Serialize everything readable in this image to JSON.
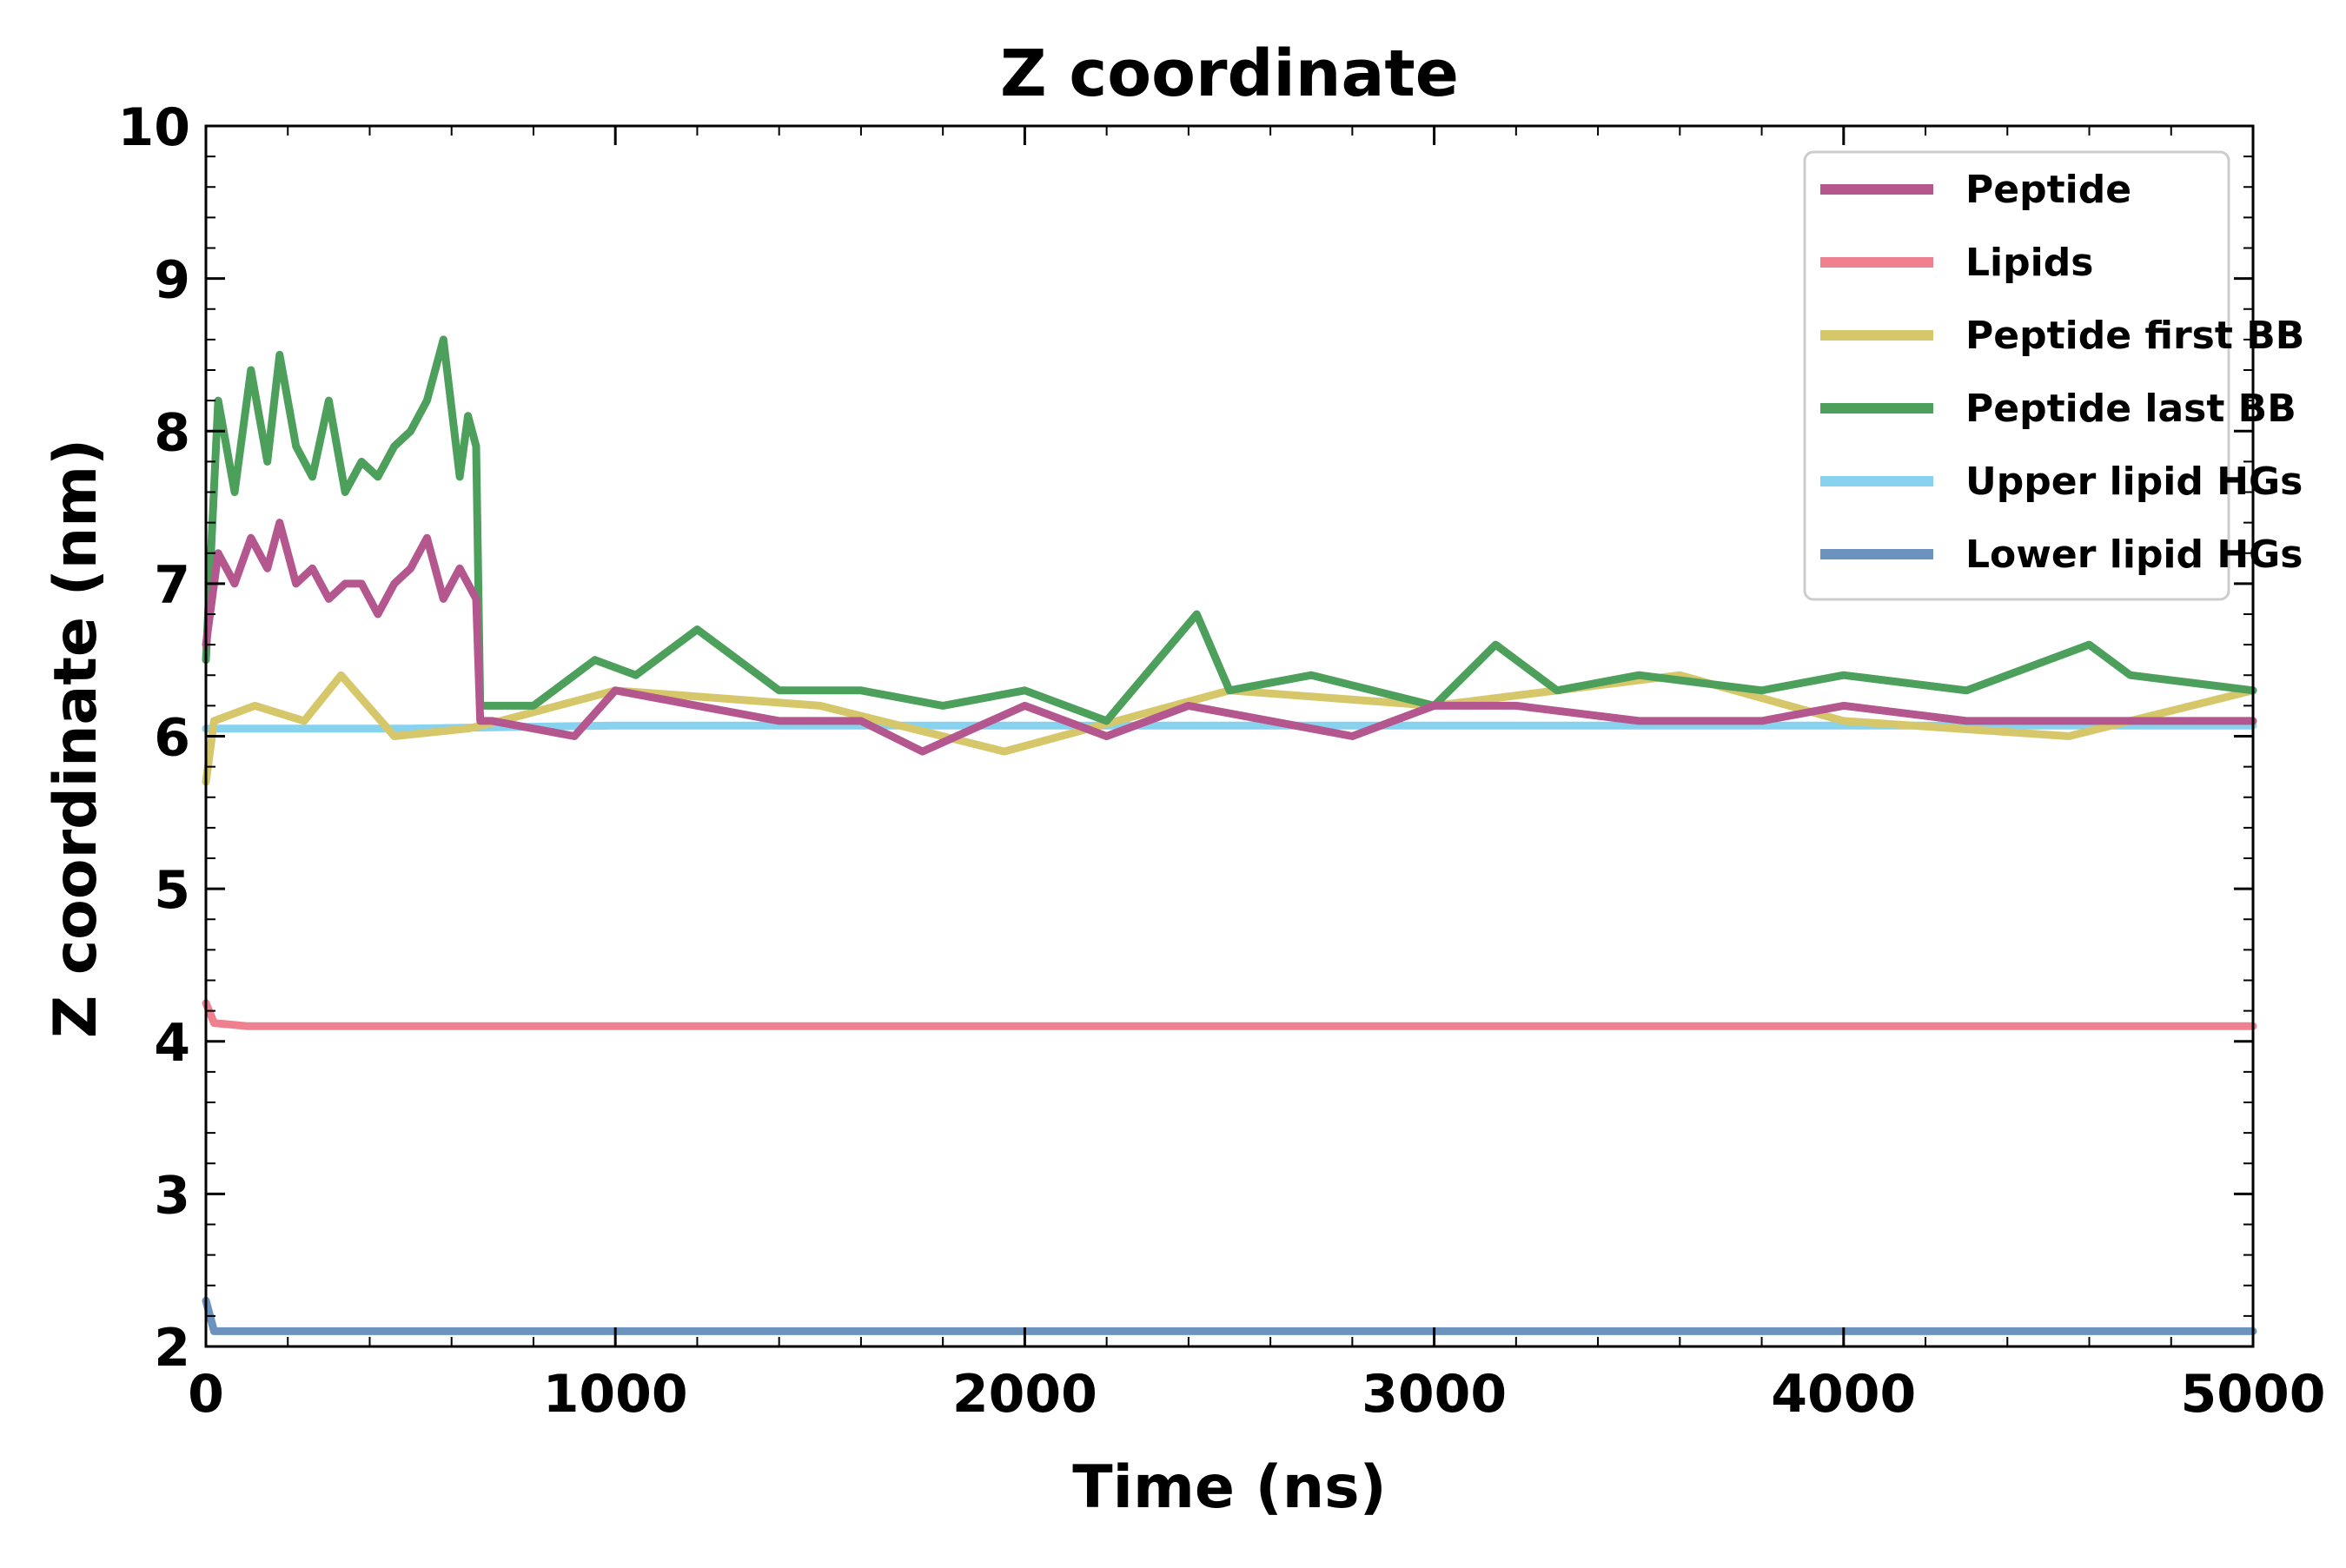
{
  "chart_data": {
    "type": "line",
    "title": "Z coordinate",
    "xlabel": "Time (ns)",
    "ylabel": "Z coordinate (nm)",
    "xlim": [
      0,
      5000
    ],
    "ylim": [
      2,
      10
    ],
    "xticks": [
      "0",
      "1000",
      "2000",
      "3000",
      "4000",
      "5000"
    ],
    "yticks": [
      "2",
      "3",
      "4",
      "5",
      "6",
      "7",
      "8",
      "9",
      "10"
    ],
    "grid": false,
    "legend_position": "top-right",
    "series": [
      {
        "name": "Lower lipid HGs",
        "color": "#6b93be",
        "x": [
          0,
          20,
          100,
          500,
          1000,
          1500,
          2000,
          2500,
          3000,
          3500,
          4000,
          4500,
          5000
        ],
        "values": [
          2.3,
          2.1,
          2.1,
          2.1,
          2.1,
          2.1,
          2.1,
          2.1,
          2.1,
          2.1,
          2.1,
          2.1,
          2.1
        ]
      },
      {
        "name": "Lipids",
        "color": "#ee8090",
        "x": [
          0,
          20,
          100,
          500,
          1000,
          1500,
          2000,
          2500,
          3000,
          3500,
          4000,
          4500,
          5000
        ],
        "values": [
          4.25,
          4.12,
          4.1,
          4.1,
          4.1,
          4.1,
          4.1,
          4.1,
          4.1,
          4.1,
          4.1,
          4.1,
          4.1
        ]
      },
      {
        "name": "Upper lipid HGs",
        "color": "#86d2ef",
        "x": [
          0,
          500,
          1000,
          1500,
          2000,
          2500,
          3000,
          3500,
          4000,
          4500,
          5000
        ],
        "values": [
          6.05,
          6.05,
          6.07,
          6.07,
          6.07,
          6.07,
          6.07,
          6.07,
          6.07,
          6.07,
          6.07
        ]
      },
      {
        "name": "Peptide first BB",
        "color": "#d6c86a",
        "x": [
          0,
          20,
          120,
          240,
          330,
          460,
          640,
          720,
          1000,
          1500,
          1950,
          2500,
          3000,
          3600,
          4000,
          4550,
          5000
        ],
        "values": [
          5.7,
          6.1,
          6.2,
          6.1,
          6.4,
          6.0,
          6.05,
          6.1,
          6.3,
          6.2,
          5.9,
          6.3,
          6.2,
          6.4,
          6.1,
          6.0,
          6.3
        ]
      },
      {
        "name": "Peptide last BB",
        "color": "#4d9f5c",
        "x": [
          0,
          30,
          70,
          110,
          150,
          180,
          220,
          260,
          300,
          340,
          380,
          420,
          460,
          500,
          540,
          580,
          620,
          640,
          660,
          670,
          700,
          800,
          950,
          1050,
          1200,
          1400,
          1600,
          1800,
          2000,
          2200,
          2420,
          2500,
          2700,
          3000,
          3150,
          3300,
          3500,
          3800,
          4000,
          4300,
          4600,
          4700,
          5000
        ],
        "values": [
          6.5,
          8.2,
          7.6,
          8.4,
          7.8,
          8.5,
          7.9,
          7.7,
          8.2,
          7.6,
          7.8,
          7.7,
          7.9,
          8.0,
          8.2,
          8.6,
          7.7,
          8.1,
          7.9,
          6.2,
          6.2,
          6.2,
          6.5,
          6.4,
          6.7,
          6.3,
          6.3,
          6.2,
          6.3,
          6.1,
          6.8,
          6.3,
          6.4,
          6.2,
          6.6,
          6.3,
          6.4,
          6.3,
          6.4,
          6.3,
          6.6,
          6.4,
          6.3
        ]
      },
      {
        "name": "Peptide",
        "color": "#b5578f",
        "x": [
          0,
          30,
          70,
          110,
          150,
          180,
          220,
          260,
          300,
          340,
          380,
          420,
          460,
          500,
          540,
          580,
          620,
          640,
          660,
          670,
          700,
          900,
          1000,
          1200,
          1400,
          1600,
          1750,
          2000,
          2200,
          2400,
          2600,
          2800,
          3000,
          3200,
          3500,
          3800,
          4000,
          4300,
          4500,
          4700,
          5000
        ],
        "values": [
          6.6,
          7.2,
          7.0,
          7.3,
          7.1,
          7.4,
          7.0,
          7.1,
          6.9,
          7.0,
          7.0,
          6.8,
          7.0,
          7.1,
          7.3,
          6.9,
          7.1,
          7.0,
          6.9,
          6.1,
          6.1,
          6.0,
          6.3,
          6.2,
          6.1,
          6.1,
          5.9,
          6.2,
          6.0,
          6.2,
          6.1,
          6.0,
          6.2,
          6.2,
          6.1,
          6.1,
          6.2,
          6.1,
          6.1,
          6.1,
          6.1
        ]
      }
    ],
    "legend_order": [
      "Peptide",
      "Lipids",
      "Peptide first BB",
      "Peptide last BB",
      "Upper lipid HGs",
      "Lower lipid HGs"
    ]
  }
}
